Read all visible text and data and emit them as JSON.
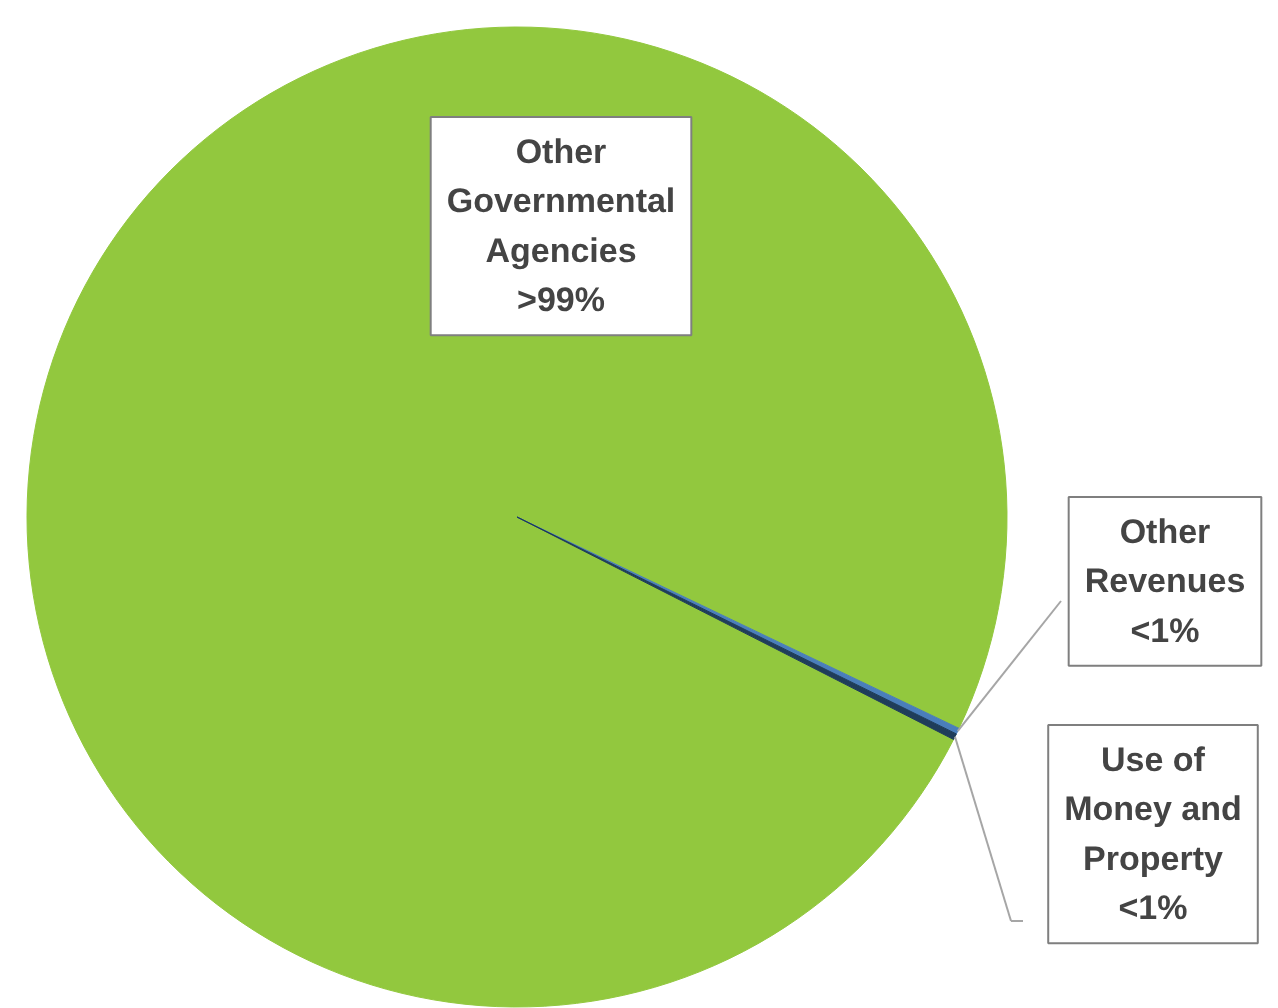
{
  "chart_data": {
    "type": "pie",
    "categories": [
      "Other Governmental Agencies",
      "Other Revenues",
      "Use of Money and Property"
    ],
    "values": [
      99.6,
      0.2,
      0.2
    ],
    "colors": [
      "#92c83e",
      "#4a7ebb",
      "#1f3d5a"
    ],
    "value_labels": [
      ">99%",
      "<1%",
      "<1%"
    ]
  }
}
